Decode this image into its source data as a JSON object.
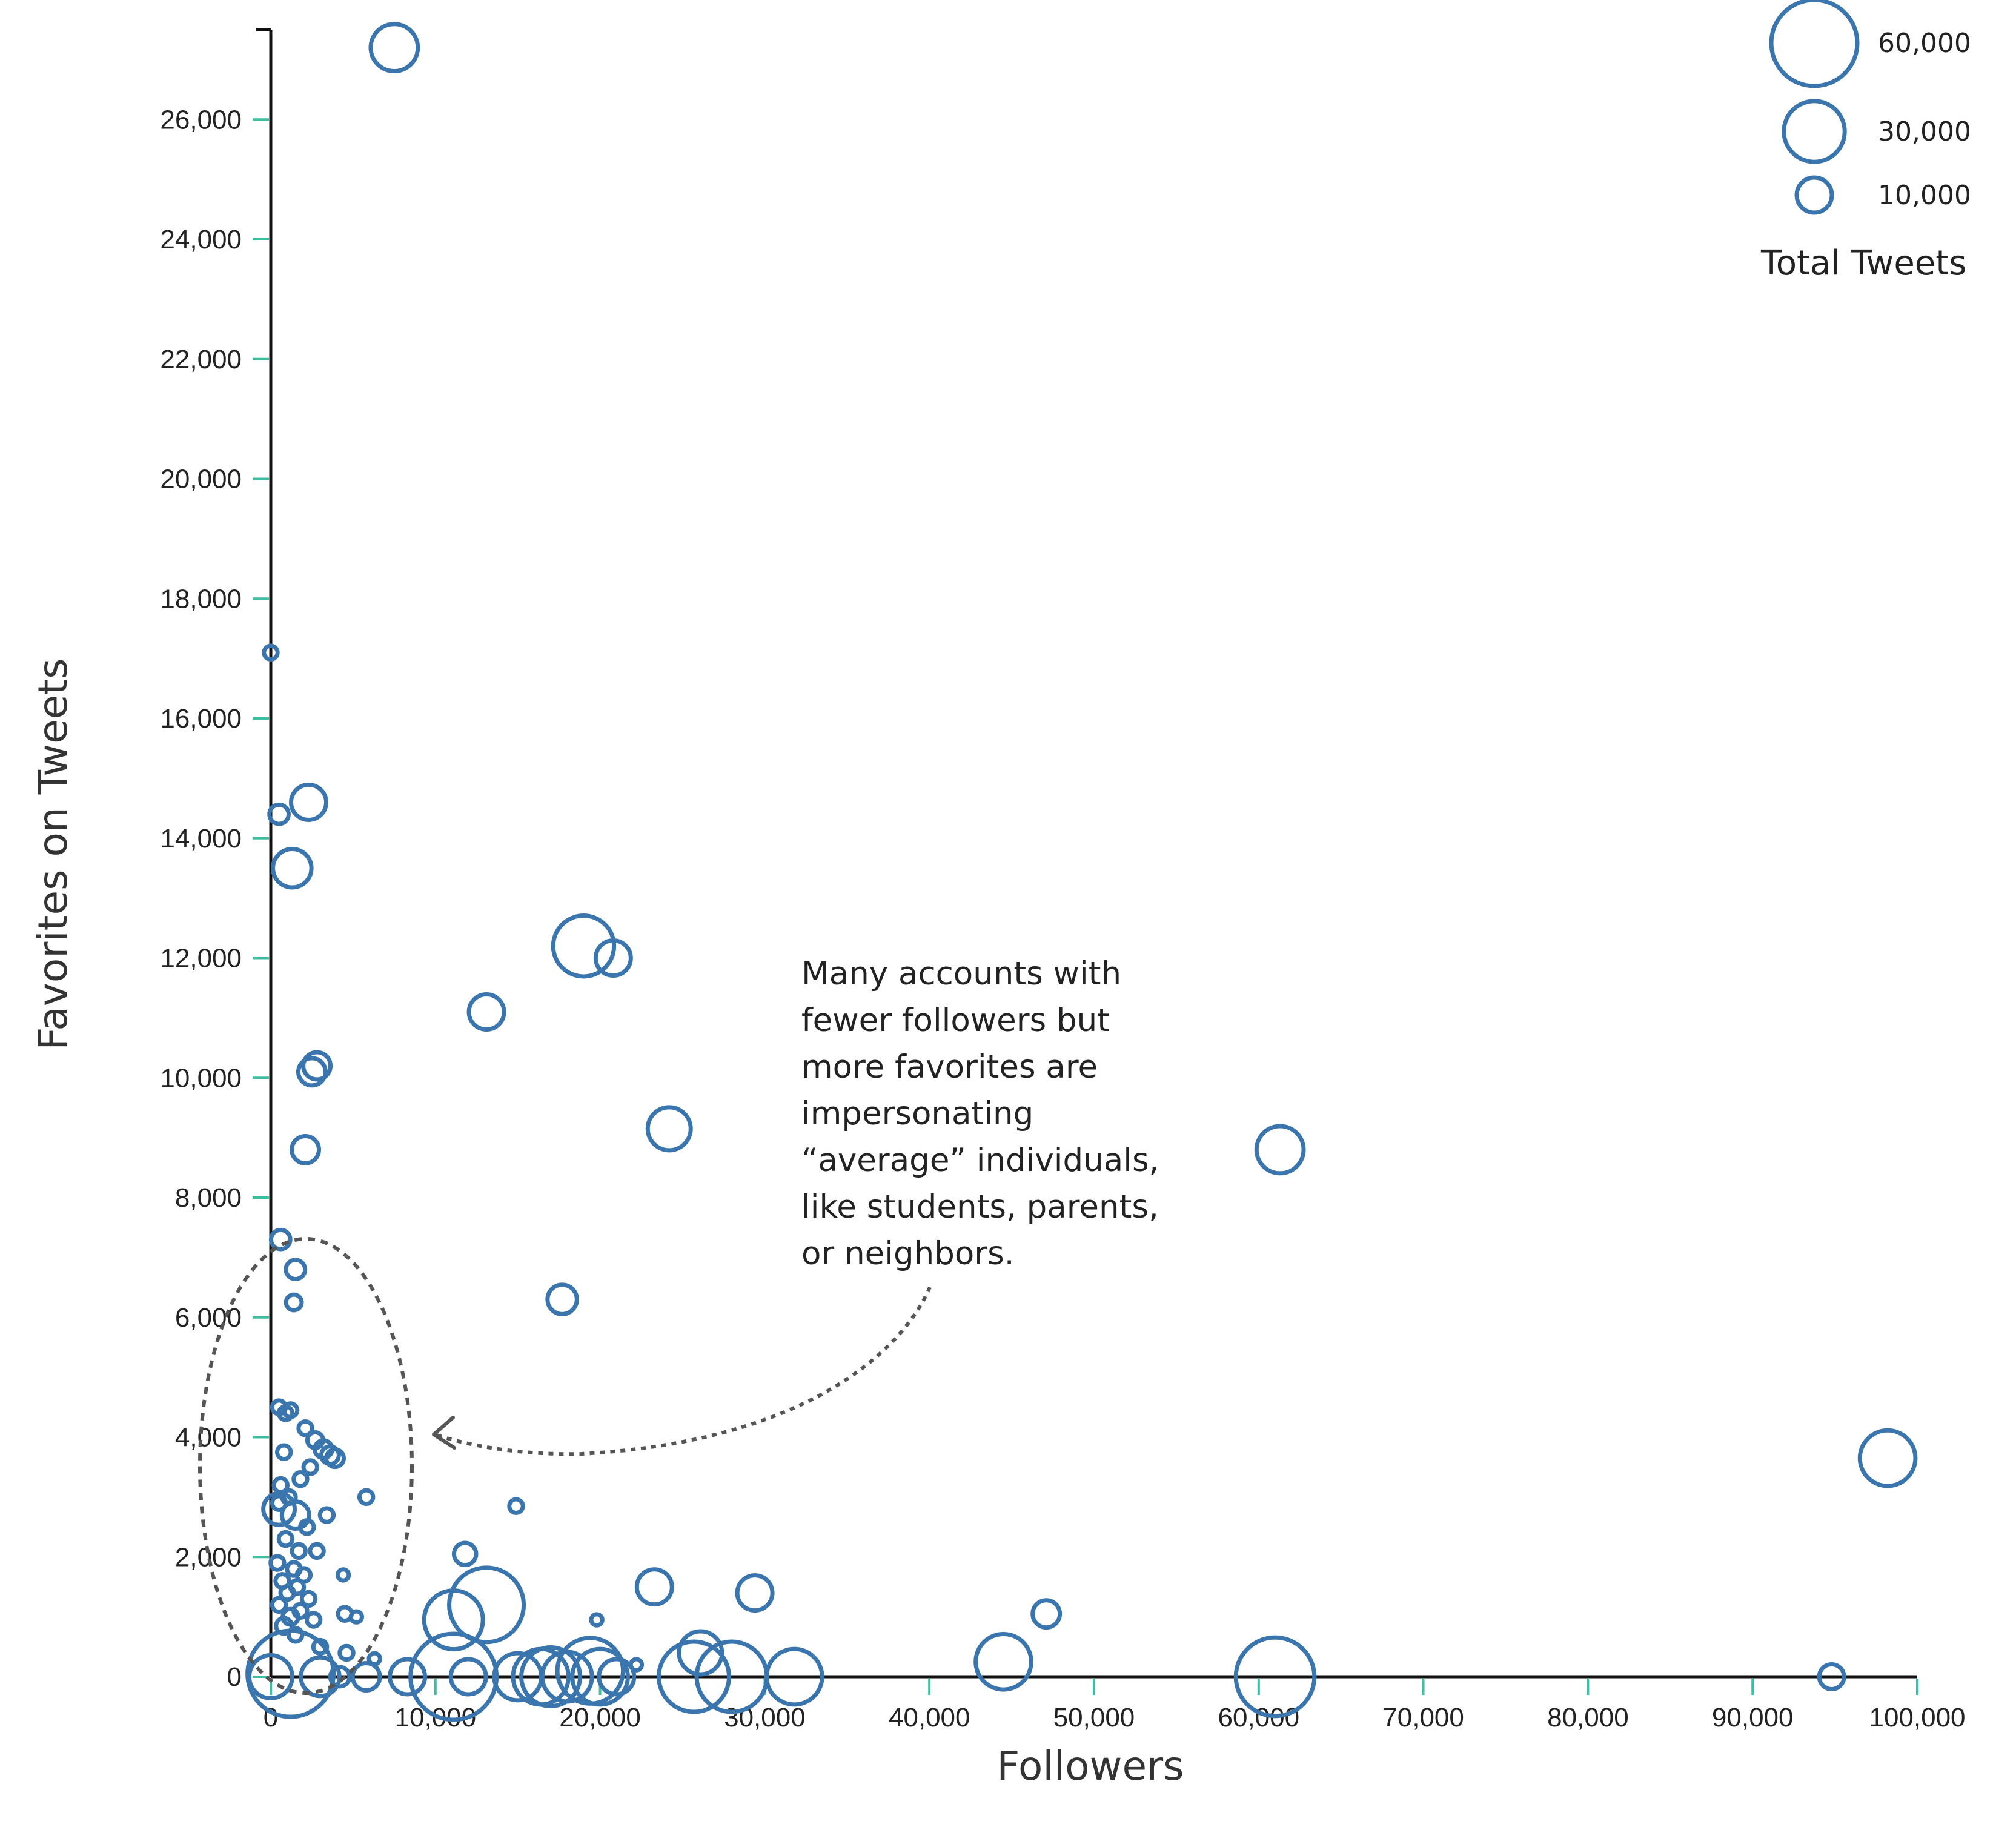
{
  "chart_data": {
    "type": "scatter",
    "xlabel": "Followers",
    "ylabel": "Favorites on Tweets",
    "xlim": [
      0,
      100000
    ],
    "ylim": [
      0,
      27500
    ],
    "x_ticks": [
      0,
      10000,
      20000,
      30000,
      40000,
      50000,
      60000,
      70000,
      80000,
      90000,
      100000
    ],
    "x_tick_labels": [
      "0",
      "10,000",
      "20,000",
      "30,000",
      "40,000",
      "50,000",
      "60,000",
      "70,000",
      "80,000",
      "90,000",
      "100,000"
    ],
    "y_ticks": [
      0,
      2000,
      4000,
      6000,
      8000,
      10000,
      12000,
      14000,
      16000,
      18000,
      20000,
      22000,
      24000,
      26000
    ],
    "y_tick_labels": [
      "0",
      "2,000",
      "4,000",
      "6,000",
      "8,000",
      "10,000",
      "12,000",
      "14,000",
      "16,000",
      "18,000",
      "20,000",
      "22,000",
      "24,000",
      "26,000"
    ],
    "grid": false,
    "size_legend": {
      "title": "Total Tweets",
      "placement": "top-right",
      "entries": [
        {
          "label": "60,000",
          "value": 60000
        },
        {
          "label": "30,000",
          "value": 30000
        },
        {
          "label": "10,000",
          "value": 10000
        }
      ]
    },
    "annotation": {
      "lines": [
        "Many accounts with",
        "fewer followers but",
        "more favorites are",
        "impersonating",
        "“average” individuals,",
        "like students, parents,",
        "or neighbors."
      ]
    },
    "points": [
      {
        "x": 7500,
        "y": 27200,
        "size": 18000
      },
      {
        "x": 0,
        "y": 17100,
        "size": 1500
      },
      {
        "x": 500,
        "y": 14400,
        "size": 3000
      },
      {
        "x": 2300,
        "y": 14600,
        "size": 10000
      },
      {
        "x": 1300,
        "y": 13500,
        "size": 12000
      },
      {
        "x": 19000,
        "y": 12200,
        "size": 30000
      },
      {
        "x": 20800,
        "y": 12000,
        "size": 10000
      },
      {
        "x": 13100,
        "y": 11100,
        "size": 10000
      },
      {
        "x": 2500,
        "y": 10100,
        "size": 6000
      },
      {
        "x": 2800,
        "y": 10200,
        "size": 6000
      },
      {
        "x": 2100,
        "y": 8800,
        "size": 6000
      },
      {
        "x": 24200,
        "y": 9150,
        "size": 15000
      },
      {
        "x": 61300,
        "y": 8800,
        "size": 18000
      },
      {
        "x": 600,
        "y": 7300,
        "size": 3000
      },
      {
        "x": 1500,
        "y": 6800,
        "size": 3000
      },
      {
        "x": 1400,
        "y": 6250,
        "size": 2000
      },
      {
        "x": 17700,
        "y": 6300,
        "size": 7000
      },
      {
        "x": 98200,
        "y": 3650,
        "size": 25000
      },
      {
        "x": 500,
        "y": 4500,
        "size": 1500
      },
      {
        "x": 1200,
        "y": 4450,
        "size": 1500
      },
      {
        "x": 900,
        "y": 4400,
        "size": 1500
      },
      {
        "x": 2100,
        "y": 4150,
        "size": 1500
      },
      {
        "x": 2700,
        "y": 3950,
        "size": 2000
      },
      {
        "x": 3200,
        "y": 3800,
        "size": 2500
      },
      {
        "x": 3600,
        "y": 3700,
        "size": 2500
      },
      {
        "x": 3900,
        "y": 3650,
        "size": 2500
      },
      {
        "x": 800,
        "y": 3750,
        "size": 1500
      },
      {
        "x": 2400,
        "y": 3500,
        "size": 1500
      },
      {
        "x": 1800,
        "y": 3300,
        "size": 1500
      },
      {
        "x": 600,
        "y": 3200,
        "size": 1500
      },
      {
        "x": 500,
        "y": 2900,
        "size": 1500
      },
      {
        "x": 1100,
        "y": 3000,
        "size": 1500
      },
      {
        "x": 5800,
        "y": 3000,
        "size": 1500
      },
      {
        "x": 500,
        "y": 2800,
        "size": 8000
      },
      {
        "x": 1500,
        "y": 2700,
        "size": 6000
      },
      {
        "x": 3400,
        "y": 2700,
        "size": 1500
      },
      {
        "x": 2200,
        "y": 2500,
        "size": 1500
      },
      {
        "x": 900,
        "y": 2300,
        "size": 1500
      },
      {
        "x": 1700,
        "y": 2100,
        "size": 1500
      },
      {
        "x": 2800,
        "y": 2100,
        "size": 1500
      },
      {
        "x": 400,
        "y": 1900,
        "size": 1500
      },
      {
        "x": 1400,
        "y": 1800,
        "size": 1500
      },
      {
        "x": 2000,
        "y": 1700,
        "size": 1500
      },
      {
        "x": 4400,
        "y": 1700,
        "size": 1000
      },
      {
        "x": 700,
        "y": 1600,
        "size": 1500
      },
      {
        "x": 1600,
        "y": 1500,
        "size": 1500
      },
      {
        "x": 1000,
        "y": 1400,
        "size": 1500
      },
      {
        "x": 2300,
        "y": 1300,
        "size": 1500
      },
      {
        "x": 500,
        "y": 1200,
        "size": 1500
      },
      {
        "x": 1800,
        "y": 1100,
        "size": 1500
      },
      {
        "x": 4500,
        "y": 1050,
        "size": 1500
      },
      {
        "x": 1200,
        "y": 1000,
        "size": 2000
      },
      {
        "x": 2600,
        "y": 950,
        "size": 1500
      },
      {
        "x": 5200,
        "y": 1000,
        "size": 1000
      },
      {
        "x": 800,
        "y": 850,
        "size": 2000
      },
      {
        "x": 1500,
        "y": 700,
        "size": 1500
      },
      {
        "x": 3000,
        "y": 500,
        "size": 1500
      },
      {
        "x": 4600,
        "y": 400,
        "size": 1500
      },
      {
        "x": 6300,
        "y": 300,
        "size": 1000
      },
      {
        "x": 14900,
        "y": 2850,
        "size": 1500
      },
      {
        "x": 11800,
        "y": 2050,
        "size": 4000
      },
      {
        "x": 23300,
        "y": 1500,
        "size": 10000
      },
      {
        "x": 29400,
        "y": 1400,
        "size": 10000
      },
      {
        "x": 47100,
        "y": 1050,
        "size": 6000
      },
      {
        "x": 19800,
        "y": 950,
        "size": 1000
      },
      {
        "x": 11100,
        "y": 950,
        "size": 28000
      },
      {
        "x": 13100,
        "y": 1200,
        "size": 45000
      },
      {
        "x": 1200,
        "y": 50,
        "size": 60000
      },
      {
        "x": 0,
        "y": 0,
        "size": 15000
      },
      {
        "x": 3000,
        "y": 0,
        "size": 12000
      },
      {
        "x": 4200,
        "y": 0,
        "size": 3000
      },
      {
        "x": 5800,
        "y": 0,
        "size": 6000
      },
      {
        "x": 8300,
        "y": 0,
        "size": 10000
      },
      {
        "x": 11100,
        "y": 0,
        "size": 60000
      },
      {
        "x": 12000,
        "y": 0,
        "size": 10000
      },
      {
        "x": 15000,
        "y": 0,
        "size": 18000
      },
      {
        "x": 16400,
        "y": 0,
        "size": 25000
      },
      {
        "x": 17000,
        "y": 0,
        "size": 28000
      },
      {
        "x": 18000,
        "y": 0,
        "size": 20000
      },
      {
        "x": 19400,
        "y": 100,
        "size": 35000
      },
      {
        "x": 20000,
        "y": 0,
        "size": 25000
      },
      {
        "x": 21000,
        "y": 0,
        "size": 10000
      },
      {
        "x": 22200,
        "y": 200,
        "size": 1000
      },
      {
        "x": 25700,
        "y": 0,
        "size": 40000
      },
      {
        "x": 26100,
        "y": 400,
        "size": 15000
      },
      {
        "x": 28000,
        "y": 0,
        "size": 40000
      },
      {
        "x": 31800,
        "y": 0,
        "size": 25000
      },
      {
        "x": 44500,
        "y": 250,
        "size": 25000
      },
      {
        "x": 61000,
        "y": 0,
        "size": 50000
      },
      {
        "x": 94800,
        "y": 0,
        "size": 5000
      }
    ]
  }
}
